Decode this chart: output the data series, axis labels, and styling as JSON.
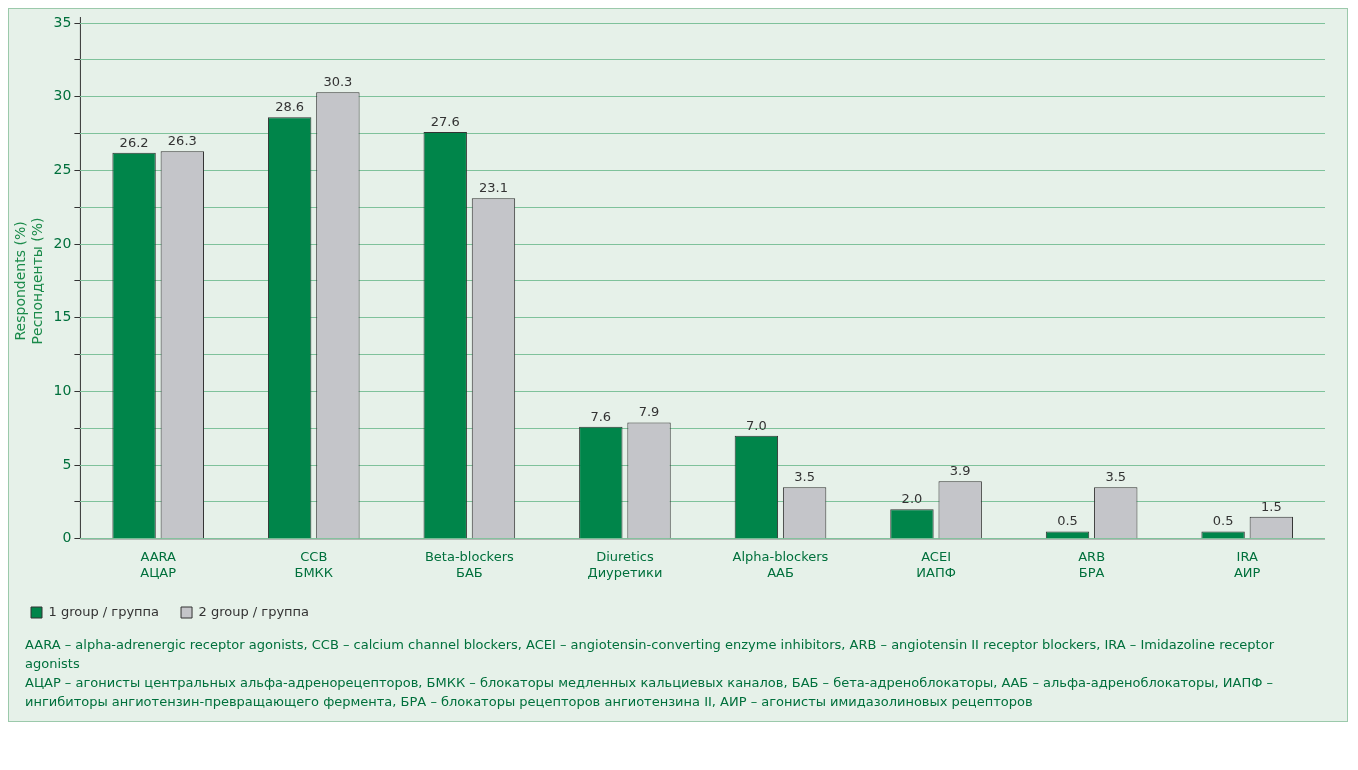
{
  "chart_data": {
    "type": "bar",
    "categories": [
      "AARA\nАЦАР",
      "CCB\nБМКК",
      "Beta-blockers\nБАБ",
      "Diuretics\nДиуретики",
      "Alpha-blockers\nААБ",
      "ACEI\nИАПФ",
      "ARB\nБРА",
      "IRA\nАИР"
    ],
    "series": [
      {
        "name": "1 group / группа",
        "color": "#00854a",
        "values": [
          26.2,
          28.6,
          27.6,
          7.6,
          7.0,
          2.0,
          0.5,
          0.5
        ],
        "value_labels": [
          "26.2",
          "28.6",
          "27.6",
          "7.6",
          "7.0",
          "2.0",
          "0.5",
          "0.5"
        ]
      },
      {
        "name": "2 group / группа",
        "color": "#c4c5c9",
        "values": [
          26.3,
          30.3,
          23.1,
          7.9,
          3.5,
          3.9,
          3.5,
          1.5
        ],
        "value_labels": [
          "26.3",
          "30.3",
          "23.1",
          "7.9",
          "3.5",
          "3.9",
          "3.5",
          "1.5"
        ]
      }
    ],
    "ylabel": "Respondents (%)\nРеспонденты (%)",
    "ylim": [
      0,
      35
    ],
    "yticks": [
      0,
      {
        "value": 2.5,
        "label": null
      },
      5,
      {
        "value": 7.5,
        "label": null
      },
      10,
      {
        "value": 12.5,
        "label": null
      },
      15,
      {
        "value": 17.5,
        "label": null
      },
      20,
      {
        "value": 22.5,
        "label": null
      },
      25,
      {
        "value": 27.5,
        "label": null
      },
      30,
      {
        "value": 32.5,
        "label": null
      },
      35
    ],
    "grid": "y",
    "legend": "bottom left",
    "annotations": [
      "AARA – alpha-adrenergic receptor agonists, CCB – calcium channel blockers, ACEI – angiotensin-converting enzyme inhibitors, ARB – angiotensin II receptor blockers, IRA – Imidazoline receptor agonists",
      "АЦАР – агонисты центральных альфа-адренорецепторов, БМКК – блокаторы медленных кальциевых каналов, БАБ – бета-адреноблокаторы, ААБ – альфа-адреноблокаторы, ИАПФ – ингибиторы ангиотензин-превращающего фермента, БРА – блокаторы рецепторов ангиотензина II, АИР – агонисты имидазолиновых рецепторов"
    ]
  }
}
